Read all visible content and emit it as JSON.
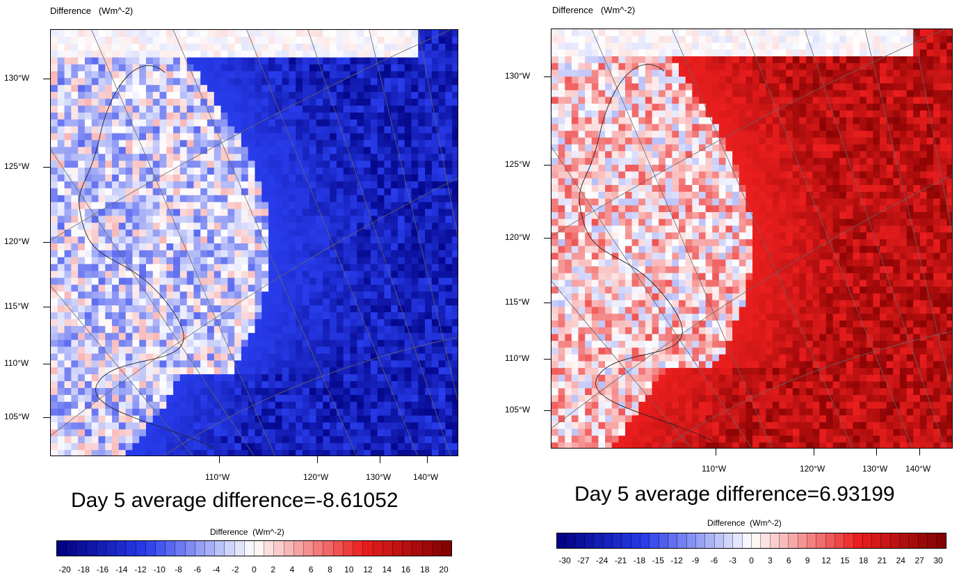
{
  "chart_data": [
    {
      "type": "heatmap",
      "title": "Difference   (Wm^-2)",
      "summary": "Day 5 average difference=-8.61052",
      "y_ticks": [
        "130°W",
        "125°W",
        "120°W",
        "115°W",
        "110°W",
        "105°W"
      ],
      "x_ticks": [
        "110°W",
        "120°W",
        "130°W",
        "140°W"
      ],
      "colorbar": {
        "title": "Difference  (Wm^-2)",
        "range": [
          -20,
          20
        ],
        "ticks": [
          "-20",
          "-18",
          "-16",
          "-14",
          "-12",
          "-10",
          "-8",
          "-6",
          "-4",
          "-2",
          "0",
          "2",
          "4",
          "6",
          "8",
          "10",
          "12",
          "14",
          "16",
          "18",
          "20"
        ]
      },
      "dominant_sign": "negative",
      "colors": {
        "low": "#00007f",
        "mid": "#ffffff",
        "high": "#7f0000"
      }
    },
    {
      "type": "heatmap",
      "title": "Difference   (Wm^-2)",
      "summary": "Day 5 average difference=6.93199",
      "y_ticks": [
        "130°W",
        "125°W",
        "120°W",
        "115°W",
        "110°W",
        "105°W"
      ],
      "x_ticks": [
        "110°W",
        "120°W",
        "130°W",
        "140°W"
      ],
      "colorbar": {
        "title": "Difference  (Wm^-2)",
        "range": [
          -30,
          30
        ],
        "ticks": [
          "-30",
          "-27",
          "-24",
          "-21",
          "-18",
          "-15",
          "-12",
          "-9",
          "-6",
          "-3",
          "0",
          "3",
          "6",
          "9",
          "12",
          "15",
          "18",
          "21",
          "24",
          "27",
          "30"
        ]
      },
      "dominant_sign": "positive",
      "colors": {
        "low": "#00007f",
        "mid": "#ffffff",
        "high": "#7f0000"
      }
    }
  ]
}
